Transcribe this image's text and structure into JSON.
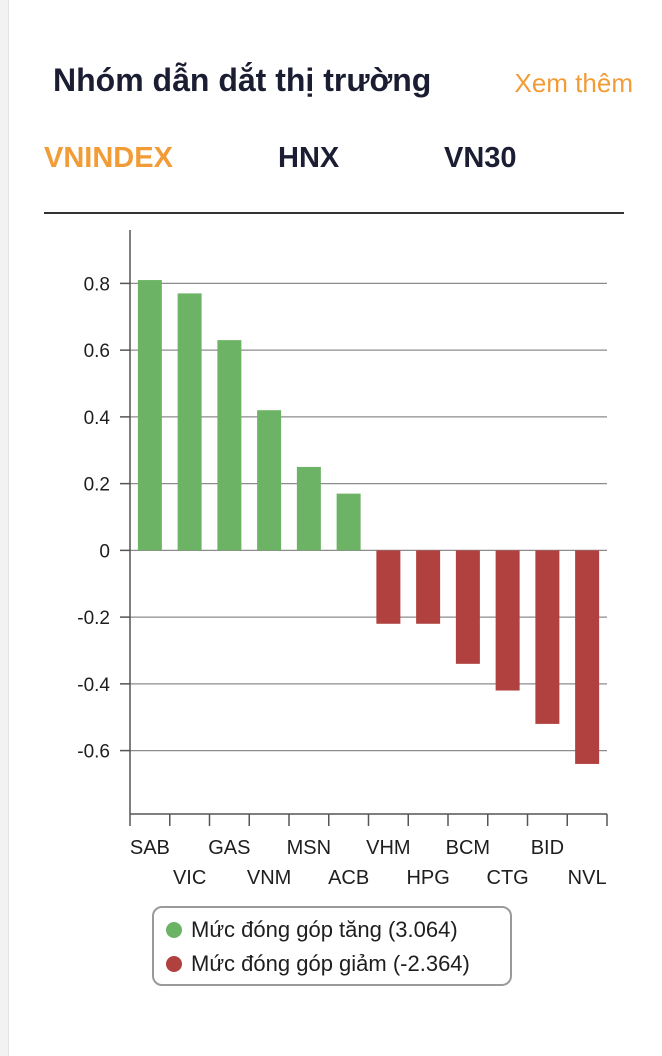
{
  "header": {
    "title": "Nhóm dẫn dắt thị trường",
    "more_link": "Xem thêm"
  },
  "tabs": [
    {
      "label": "VNINDEX",
      "active": true
    },
    {
      "label": "HNX",
      "active": false
    },
    {
      "label": "VN30",
      "active": false
    }
  ],
  "colors": {
    "accent": "#f29c38",
    "positive": "#6db365",
    "negative": "#b0413e",
    "text": "#1b1e33"
  },
  "chart_data": {
    "type": "bar",
    "categories": [
      "SAB",
      "VIC",
      "GAS",
      "VNM",
      "MSN",
      "ACB",
      "VHM",
      "HPG",
      "BCM",
      "CTG",
      "BID",
      "NVL"
    ],
    "values": [
      0.81,
      0.77,
      0.63,
      0.42,
      0.25,
      0.17,
      -0.22,
      -0.22,
      -0.34,
      -0.42,
      -0.52,
      -0.64
    ],
    "y_ticks": [
      0.8,
      0.6,
      0.4,
      0.2,
      0,
      -0.2,
      -0.4,
      -0.6
    ],
    "y_tick_labels": [
      "0.8",
      "0.6",
      "0.4",
      "0.2",
      "0",
      "-0.2",
      "-0.4",
      "-0.6"
    ],
    "ylim": [
      -0.79,
      0.96
    ],
    "grid": true,
    "legend": [
      {
        "label": "Mức đóng góp tăng (3.064)",
        "color": "#6db365"
      },
      {
        "label": "Mức đóng góp giảm (-2.364)",
        "color": "#b0413e"
      }
    ]
  }
}
